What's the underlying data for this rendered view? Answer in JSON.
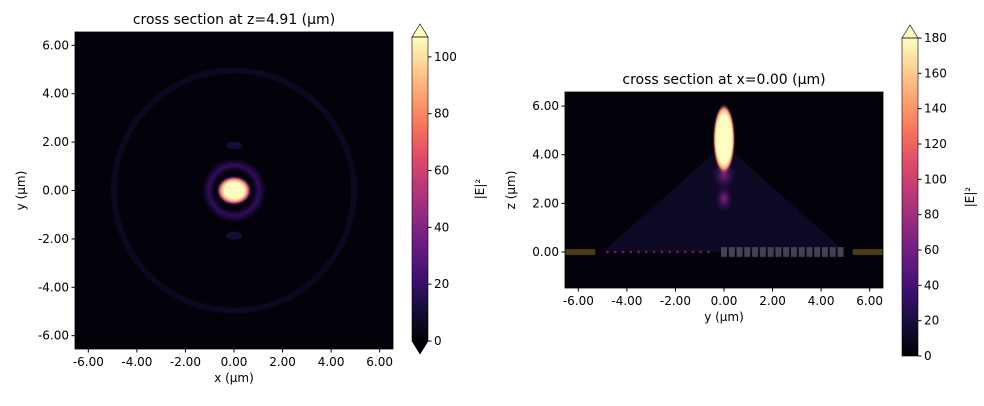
{
  "chart_data": [
    {
      "type": "heatmap",
      "title": "cross section at z=4.91 (μm)",
      "xlabel": "x (μm)",
      "ylabel": "y (μm)",
      "xlim": [
        -6.55,
        6.55
      ],
      "ylim": [
        -6.55,
        6.55
      ],
      "xticks": [
        "-6.00",
        "-4.00",
        "-2.00",
        "0.00",
        "2.00",
        "4.00",
        "6.00"
      ],
      "yticks": [
        "6.00",
        "4.00",
        "2.00",
        "0.00",
        "-2.00",
        "-4.00",
        "-6.00"
      ],
      "xtick_values": [
        -6,
        -4,
        -2,
        0,
        2,
        4,
        6
      ],
      "ytick_values": [
        6,
        4,
        2,
        0,
        -2,
        -4,
        -6
      ],
      "colormap": "magma",
      "colorbar": {
        "label": "|E|²",
        "clim": [
          0,
          107
        ],
        "extend": "both",
        "ticks": [
          "0",
          "20",
          "40",
          "60",
          "80",
          "100"
        ],
        "tick_values": [
          0,
          20,
          40,
          60,
          80,
          100
        ]
      },
      "features": {
        "peak_center": [
          0,
          0
        ],
        "peak_value_above": 107
      }
    },
    {
      "type": "heatmap",
      "title": "cross section at x=0.00 (μm)",
      "xlabel": "y (μm)",
      "ylabel": "z (μm)",
      "xlim": [
        -6.55,
        6.55
      ],
      "ylim": [
        -1.48,
        6.58
      ],
      "xticks": [
        "-6.00",
        "-4.00",
        "-2.00",
        "0.00",
        "2.00",
        "4.00",
        "6.00"
      ],
      "yticks": [
        "6.00",
        "4.00",
        "2.00",
        "0.00"
      ],
      "xtick_values": [
        -6,
        -4,
        -2,
        0,
        2,
        4,
        6
      ],
      "ytick_values": [
        6,
        4,
        2,
        0
      ],
      "colormap": "magma",
      "colorbar": {
        "label": "|E|²",
        "clim": [
          0,
          180
        ],
        "extend": "max",
        "ticks": [
          "0",
          "20",
          "40",
          "60",
          "80",
          "100",
          "120",
          "140",
          "160",
          "180"
        ],
        "tick_values": [
          0,
          20,
          40,
          60,
          80,
          100,
          120,
          140,
          160,
          180
        ]
      },
      "features": {
        "peak_center": [
          0,
          4.6
        ],
        "structure_z": 0
      }
    }
  ]
}
